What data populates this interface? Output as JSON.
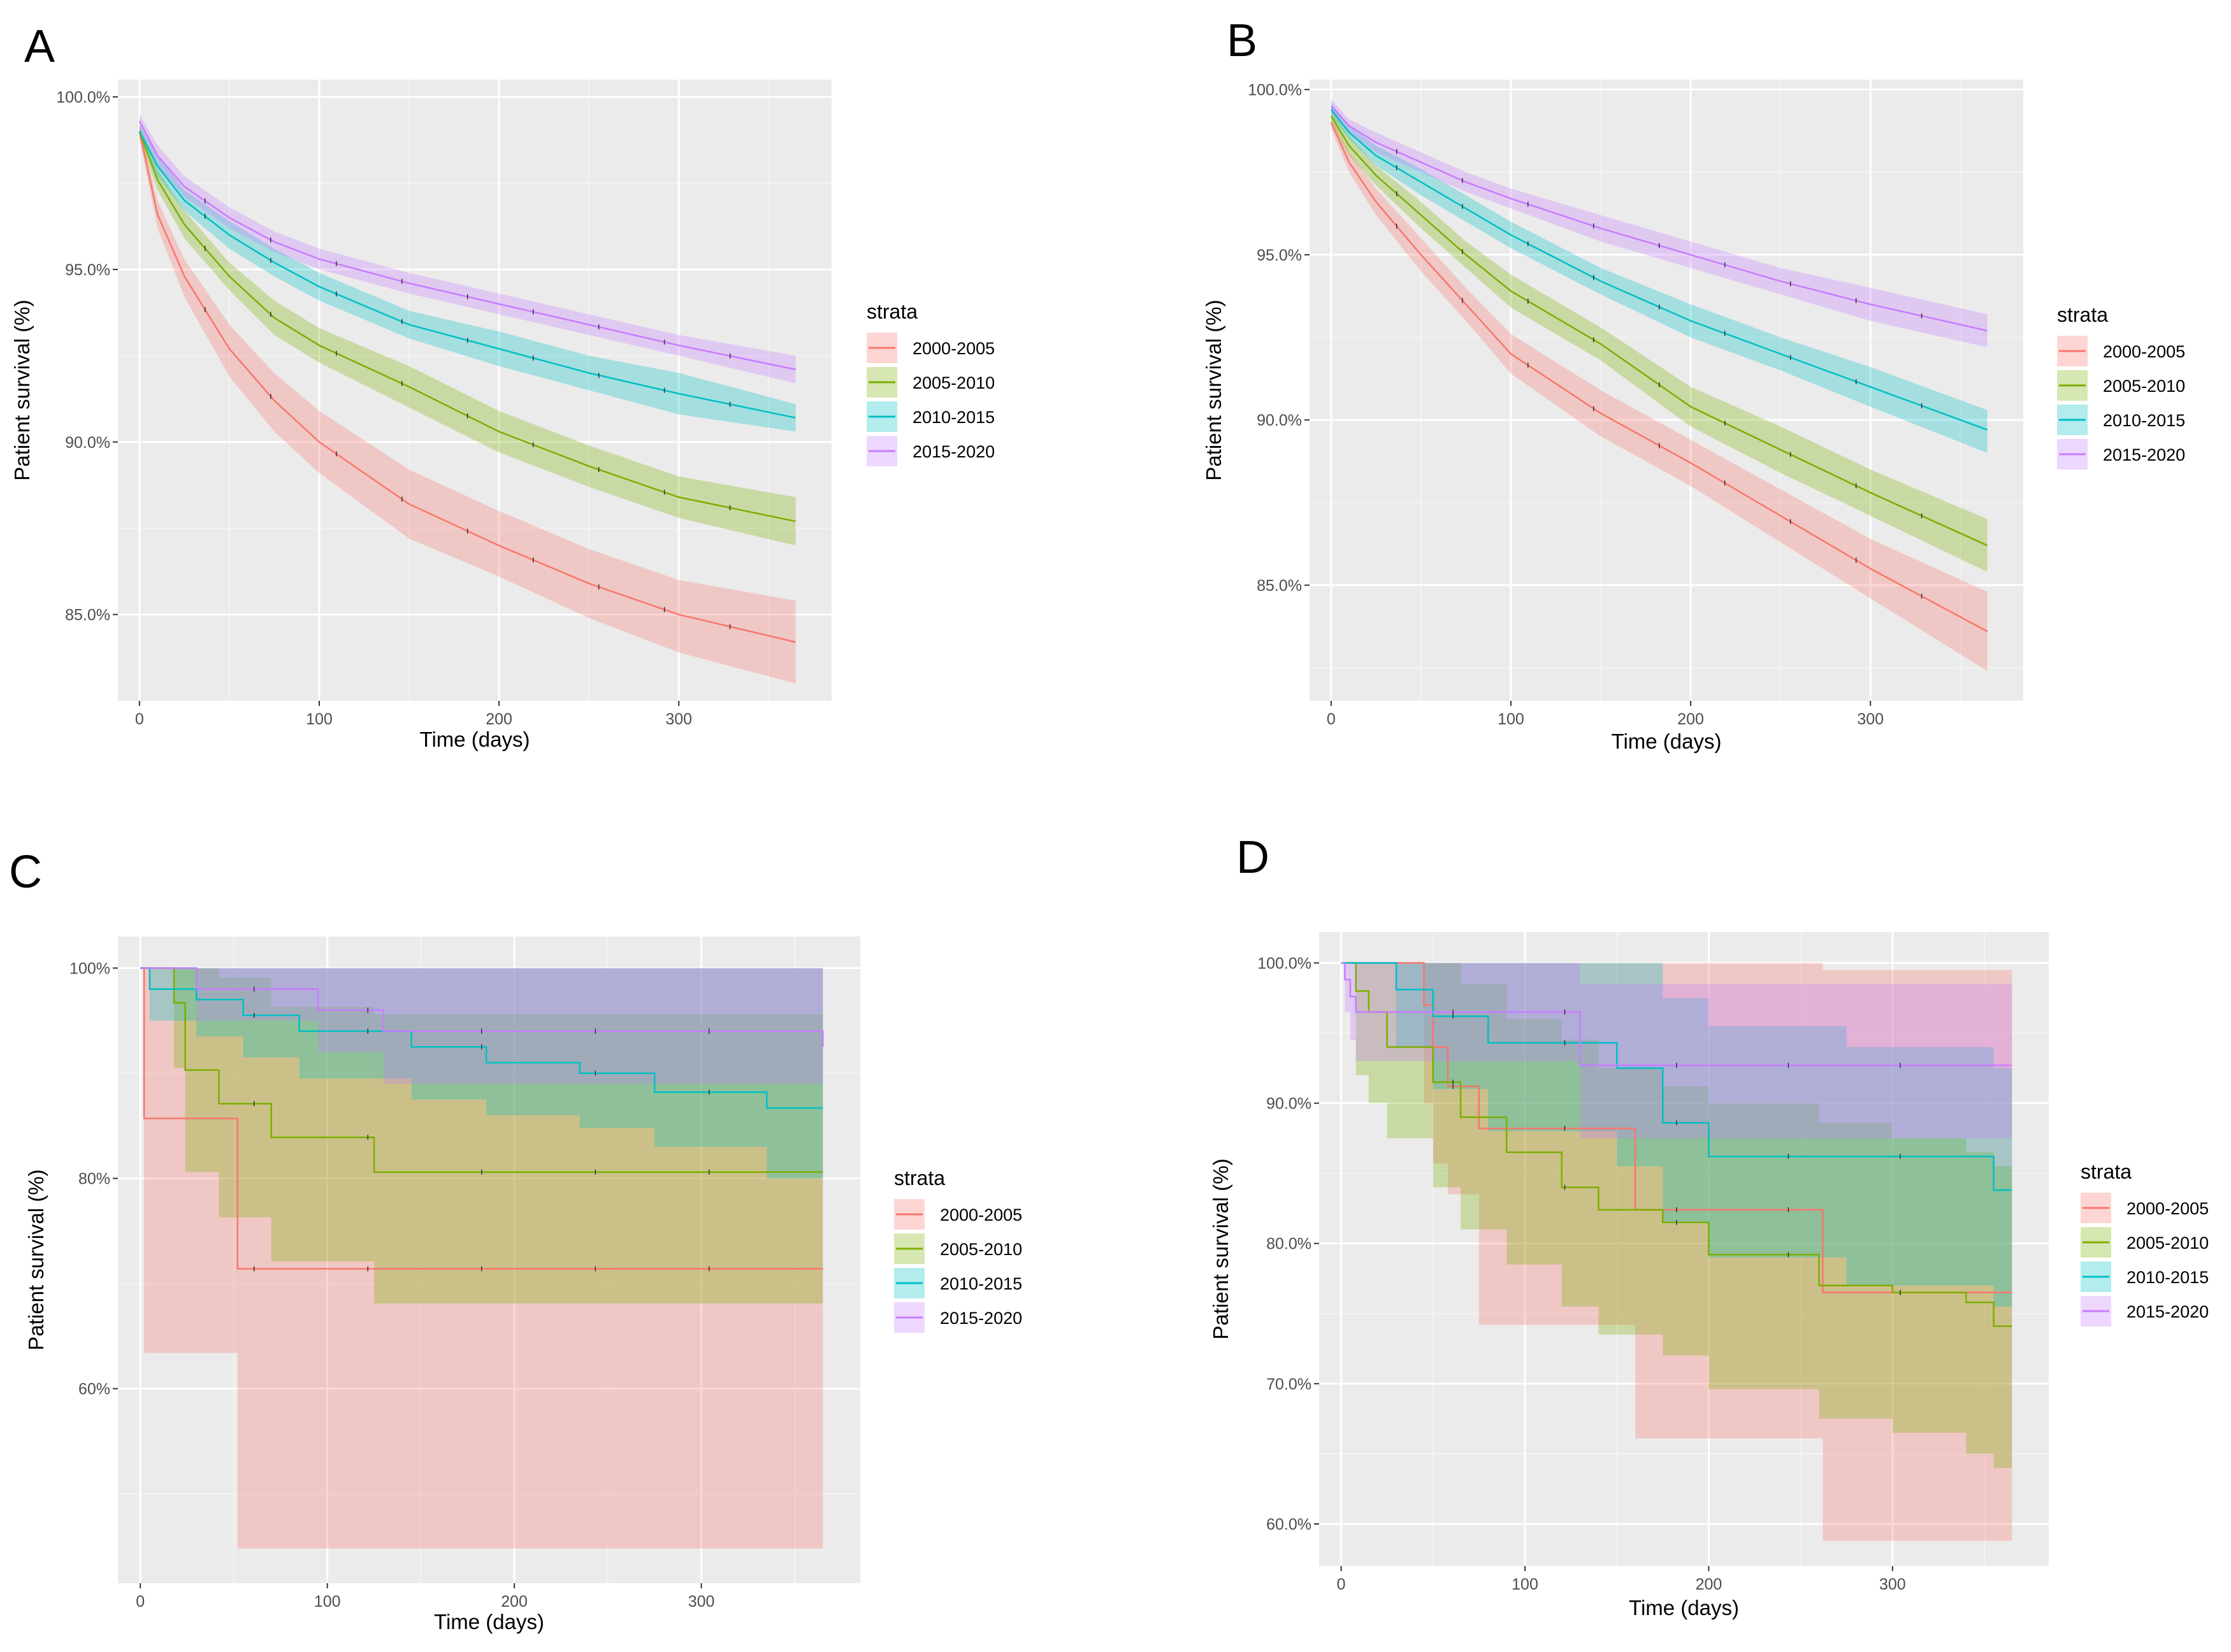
{
  "figure": {
    "panels": [
      "A",
      "B",
      "C",
      "D"
    ]
  },
  "chart_data": [
    {
      "panel": "A",
      "type": "line",
      "subtype": "kaplan-meier",
      "title": "",
      "xlabel": "Time (days)",
      "ylabel": "Patient survival (%)",
      "xlim": [
        -12,
        385
      ],
      "ylim": [
        82.5,
        100.5
      ],
      "xticks": [
        0,
        100,
        200,
        300
      ],
      "xtick_labels": [
        "0",
        "100",
        "200",
        "300"
      ],
      "yticks": [
        85,
        90,
        95,
        100
      ],
      "ytick_labels": [
        "85.0%",
        "90.0%",
        "95.0%",
        "100.0%"
      ],
      "legend": {
        "title": "strata",
        "placement": "right",
        "entries": [
          "2000-2005",
          "2005-2010",
          "2010-2015",
          "2015-2020"
        ]
      },
      "series": [
        {
          "name": "2000-2005",
          "color": "#F8766D",
          "step": false,
          "x": [
            0,
            10,
            25,
            50,
            75,
            100,
            150,
            200,
            250,
            300,
            365
          ],
          "values": [
            99.0,
            96.6,
            94.8,
            92.7,
            91.2,
            90.0,
            88.2,
            87.0,
            85.9,
            85.0,
            84.2
          ],
          "lower": [
            98.8,
            96.2,
            94.2,
            91.9,
            90.3,
            89.1,
            87.2,
            86.1,
            84.9,
            83.9,
            83.0
          ],
          "upper": [
            99.2,
            97.0,
            95.3,
            93.4,
            92.0,
            90.9,
            89.2,
            88.0,
            86.9,
            86.0,
            85.4
          ]
        },
        {
          "name": "2005-2010",
          "color": "#7CAE00",
          "step": false,
          "x": [
            0,
            10,
            25,
            50,
            75,
            100,
            150,
            200,
            250,
            300,
            365
          ],
          "values": [
            99.0,
            97.6,
            96.3,
            94.8,
            93.6,
            92.8,
            91.6,
            90.3,
            89.3,
            88.4,
            87.7
          ],
          "lower": [
            98.8,
            97.3,
            95.9,
            94.4,
            93.1,
            92.3,
            91.0,
            89.7,
            88.7,
            87.8,
            87.0
          ],
          "upper": [
            99.2,
            97.9,
            96.7,
            95.2,
            94.1,
            93.3,
            92.2,
            90.9,
            89.9,
            89.0,
            88.4
          ]
        },
        {
          "name": "2010-2015",
          "color": "#00BFC4",
          "step": false,
          "x": [
            0,
            10,
            25,
            50,
            75,
            100,
            150,
            200,
            250,
            300,
            365
          ],
          "values": [
            99.0,
            98.0,
            97.0,
            96.0,
            95.2,
            94.5,
            93.4,
            92.7,
            92.0,
            91.4,
            90.7
          ],
          "lower": [
            98.8,
            97.7,
            96.7,
            95.6,
            94.8,
            94.1,
            93.0,
            92.2,
            91.5,
            90.8,
            90.3
          ],
          "upper": [
            99.2,
            98.3,
            97.3,
            96.4,
            95.6,
            94.9,
            93.8,
            93.2,
            92.5,
            92.0,
            91.1
          ]
        },
        {
          "name": "2015-2020",
          "color": "#C77CFF",
          "step": false,
          "x": [
            0,
            10,
            25,
            50,
            75,
            100,
            150,
            200,
            250,
            300,
            365
          ],
          "values": [
            99.3,
            98.3,
            97.4,
            96.5,
            95.8,
            95.3,
            94.6,
            94.0,
            93.4,
            92.8,
            92.1
          ],
          "lower": [
            99.1,
            98.0,
            97.1,
            96.2,
            95.5,
            95.0,
            94.3,
            93.7,
            93.1,
            92.5,
            91.7
          ],
          "upper": [
            99.5,
            98.6,
            97.7,
            96.8,
            96.1,
            95.6,
            94.9,
            94.3,
            93.7,
            93.1,
            92.5
          ]
        }
      ]
    },
    {
      "panel": "B",
      "type": "line",
      "subtype": "kaplan-meier",
      "title": "",
      "xlabel": "Time (days)",
      "ylabel": "Patient survival (%)",
      "xlim": [
        -12,
        385
      ],
      "ylim": [
        81.5,
        100.3
      ],
      "xticks": [
        0,
        100,
        200,
        300
      ],
      "xtick_labels": [
        "0",
        "100",
        "200",
        "300"
      ],
      "yticks": [
        85,
        90,
        95,
        100
      ],
      "ytick_labels": [
        "85.0%",
        "90.0%",
        "95.0%",
        "100.0%"
      ],
      "legend": {
        "title": "strata",
        "placement": "right",
        "entries": [
          "2000-2005",
          "2005-2010",
          "2010-2015",
          "2015-2020"
        ]
      },
      "series": [
        {
          "name": "2000-2005",
          "color": "#F8766D",
          "step": false,
          "x": [
            0,
            10,
            25,
            50,
            75,
            100,
            150,
            200,
            250,
            300,
            365
          ],
          "values": [
            99.0,
            97.8,
            96.6,
            95.0,
            93.5,
            92.0,
            90.2,
            88.7,
            87.1,
            85.5,
            83.6
          ],
          "lower": [
            98.8,
            97.5,
            96.2,
            94.5,
            93.0,
            91.4,
            89.5,
            88.0,
            86.3,
            84.6,
            82.4
          ],
          "upper": [
            99.2,
            98.1,
            97.0,
            95.5,
            94.0,
            92.6,
            90.9,
            89.4,
            87.9,
            86.4,
            84.8
          ]
        },
        {
          "name": "2005-2010",
          "color": "#7CAE00",
          "step": false,
          "x": [
            0,
            10,
            25,
            50,
            75,
            100,
            150,
            200,
            250,
            300,
            365
          ],
          "values": [
            99.2,
            98.3,
            97.4,
            96.2,
            95.0,
            93.9,
            92.3,
            90.4,
            89.1,
            87.8,
            86.2
          ],
          "lower": [
            99.0,
            98.0,
            97.1,
            95.8,
            94.6,
            93.4,
            91.8,
            89.8,
            88.4,
            87.1,
            85.4
          ],
          "upper": [
            99.4,
            98.6,
            97.7,
            96.6,
            95.4,
            94.4,
            92.8,
            91.0,
            89.8,
            88.5,
            87.0
          ]
        },
        {
          "name": "2010-2015",
          "color": "#00BFC4",
          "step": false,
          "x": [
            0,
            10,
            25,
            50,
            75,
            100,
            150,
            200,
            250,
            300,
            365
          ],
          "values": [
            99.4,
            98.7,
            98.0,
            97.2,
            96.4,
            95.6,
            94.2,
            93.0,
            92.0,
            91.0,
            89.7
          ],
          "lower": [
            99.2,
            98.5,
            97.7,
            96.8,
            96.0,
            95.2,
            93.8,
            92.5,
            91.5,
            90.4,
            89.0
          ],
          "upper": [
            99.6,
            98.9,
            98.3,
            97.6,
            96.8,
            96.0,
            94.6,
            93.5,
            92.5,
            91.6,
            90.3
          ]
        },
        {
          "name": "2015-2020",
          "color": "#C77CFF",
          "step": false,
          "x": [
            0,
            10,
            25,
            50,
            75,
            100,
            150,
            200,
            250,
            300,
            365
          ],
          "values": [
            99.5,
            98.9,
            98.4,
            97.8,
            97.2,
            96.7,
            95.8,
            95.0,
            94.2,
            93.5,
            92.7
          ],
          "lower": [
            99.3,
            98.7,
            98.1,
            97.5,
            96.9,
            96.4,
            95.4,
            94.6,
            93.8,
            93.0,
            92.2
          ],
          "upper": [
            99.7,
            99.1,
            98.7,
            98.1,
            97.5,
            97.0,
            96.2,
            95.4,
            94.6,
            94.0,
            93.2
          ]
        }
      ]
    },
    {
      "panel": "C",
      "type": "line",
      "subtype": "kaplan-meier",
      "title": "",
      "xlabel": "Time (days)",
      "ylabel": "Patient survival (%)",
      "xlim": [
        -12,
        385
      ],
      "ylim": [
        41.5,
        103
      ],
      "xticks": [
        0,
        100,
        200,
        300
      ],
      "xtick_labels": [
        "0",
        "100",
        "200",
        "300"
      ],
      "yticks": [
        60,
        80,
        100
      ],
      "ytick_labels": [
        "60%",
        "80%",
        "100%"
      ],
      "legend": {
        "title": "strata",
        "placement": "right",
        "entries": [
          "2000-2005",
          "2005-2010",
          "2010-2015",
          "2015-2020"
        ]
      },
      "series": [
        {
          "name": "2000-2005",
          "color": "#F8766D",
          "step": true,
          "x": [
            0,
            2,
            52,
            365
          ],
          "values": [
            100,
            85.7,
            71.4,
            71.4
          ],
          "lower": [
            100,
            63.4,
            44.8,
            44.8
          ],
          "upper": [
            100,
            100,
            100,
            100
          ]
        },
        {
          "name": "2005-2010",
          "color": "#7CAE00",
          "step": true,
          "x": [
            0,
            18,
            24,
            42,
            70,
            125,
            365
          ],
          "values": [
            100,
            96.7,
            90.3,
            87.1,
            83.9,
            80.6,
            80.6
          ],
          "lower": [
            100,
            90.5,
            80.6,
            76.3,
            72.1,
            68.1,
            68.1
          ],
          "upper": [
            100,
            100,
            100,
            99.1,
            96.3,
            95.6,
            95.6
          ]
        },
        {
          "name": "2010-2015",
          "color": "#00BFC4",
          "step": true,
          "x": [
            0,
            5,
            30,
            55,
            85,
            145,
            185,
            235,
            275,
            335,
            365
          ],
          "values": [
            100,
            98.0,
            97.0,
            95.5,
            94.0,
            92.5,
            91.0,
            90.0,
            88.2,
            86.7,
            86.7
          ],
          "lower": [
            100,
            95.0,
            93.5,
            91.5,
            89.5,
            87.5,
            86.0,
            84.8,
            83.0,
            80.0,
            80.0
          ],
          "upper": [
            100,
            100,
            100,
            100,
            100,
            100,
            100,
            100,
            100,
            100,
            100
          ]
        },
        {
          "name": "2015-2020",
          "color": "#C77CFF",
          "step": true,
          "x": [
            0,
            30,
            95,
            130,
            365
          ],
          "values": [
            100,
            98.0,
            96.0,
            94.0,
            92.5
          ],
          "lower": [
            100,
            95.0,
            92.0,
            89.0,
            87.0
          ],
          "upper": [
            100,
            100,
            100,
            100,
            100
          ]
        }
      ]
    },
    {
      "panel": "D",
      "type": "line",
      "subtype": "kaplan-meier",
      "title": "",
      "xlabel": "Time (days)",
      "ylabel": "Patient survival (%)",
      "xlim": [
        -12,
        385
      ],
      "ylim": [
        57,
        102.2
      ],
      "xticks": [
        0,
        100,
        200,
        300
      ],
      "xtick_labels": [
        "0",
        "100",
        "200",
        "300"
      ],
      "yticks": [
        60,
        70,
        80,
        90,
        100
      ],
      "ytick_labels": [
        "60.0%",
        "70.0%",
        "80.0%",
        "90.0%",
        "100.0%"
      ],
      "legend": {
        "title": "strata",
        "placement": "right",
        "entries": [
          "2000-2005",
          "2005-2010",
          "2010-2015",
          "2015-2020"
        ]
      },
      "series": [
        {
          "name": "2000-2005",
          "color": "#F8766D",
          "step": true,
          "x": [
            0,
            45,
            50,
            58,
            75,
            160,
            262,
            365
          ],
          "values": [
            100,
            97,
            94,
            91.2,
            88.2,
            82.4,
            76.5,
            76.5
          ],
          "lower": [
            100,
            90,
            85.7,
            83.5,
            74.2,
            66.1,
            58.8,
            58.8
          ],
          "upper": [
            100,
            100,
            100,
            100,
            100,
            100,
            99.5,
            99.5
          ]
        },
        {
          "name": "2005-2010",
          "color": "#7CAE00",
          "step": true,
          "x": [
            0,
            8,
            15,
            25,
            50,
            65,
            90,
            120,
            140,
            175,
            200,
            260,
            300,
            340,
            355,
            365
          ],
          "values": [
            100,
            98,
            96.5,
            94,
            91.5,
            89,
            86.5,
            84,
            82.4,
            81.5,
            79.2,
            77,
            76.5,
            75.8,
            74.1,
            74.1
          ],
          "lower": [
            100,
            92,
            90,
            87.5,
            84,
            81,
            78.5,
            75.5,
            73.5,
            72,
            69.6,
            67.5,
            66.5,
            65,
            64,
            64
          ],
          "upper": [
            100,
            100,
            100,
            100,
            100,
            98.5,
            96,
            94.5,
            92.5,
            91.2,
            90,
            88.6,
            87.5,
            86.5,
            85.5,
            85.5
          ]
        },
        {
          "name": "2010-2015",
          "color": "#00BFC4",
          "step": true,
          "x": [
            0,
            30,
            50,
            80,
            150,
            175,
            200,
            275,
            355,
            365
          ],
          "values": [
            100,
            98.1,
            96.2,
            94.3,
            92.5,
            88.6,
            86.2,
            86.2,
            83.8,
            83.8
          ],
          "lower": [
            100,
            94,
            91,
            88,
            85.5,
            81.5,
            79,
            77,
            75.5,
            75.5
          ],
          "upper": [
            100,
            100,
            100,
            100,
            100,
            97.5,
            95.5,
            94,
            92.5,
            92.5
          ]
        },
        {
          "name": "2015-2020",
          "color": "#C77CFF",
          "step": true,
          "x": [
            0,
            2,
            5,
            8,
            130,
            365
          ],
          "values": [
            100,
            98.8,
            97.6,
            96.5,
            92.7,
            92.7
          ],
          "lower": [
            100,
            96.5,
            94.5,
            93,
            87.5,
            87.5
          ],
          "upper": [
            100,
            100,
            100,
            100,
            98.5,
            98.5
          ]
        }
      ]
    }
  ]
}
